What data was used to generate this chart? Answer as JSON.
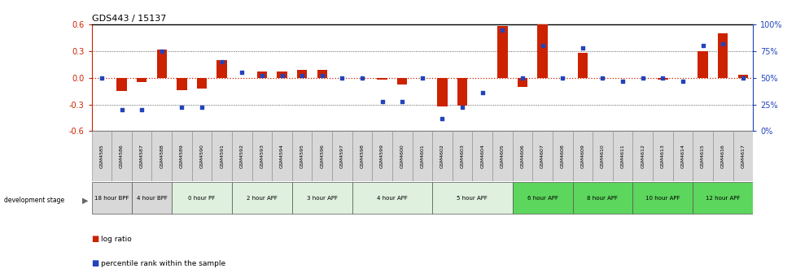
{
  "title": "GDS443 / 15137",
  "samples": [
    "GSM4585",
    "GSM4586",
    "GSM4587",
    "GSM4588",
    "GSM4589",
    "GSM4590",
    "GSM4591",
    "GSM4592",
    "GSM4593",
    "GSM4594",
    "GSM4595",
    "GSM4596",
    "GSM4597",
    "GSM4598",
    "GSM4599",
    "GSM4600",
    "GSM4601",
    "GSM4602",
    "GSM4603",
    "GSM4604",
    "GSM4605",
    "GSM4606",
    "GSM4607",
    "GSM4608",
    "GSM4609",
    "GSM4610",
    "GSM4611",
    "GSM4612",
    "GSM4613",
    "GSM4614",
    "GSM4615",
    "GSM4616",
    "GSM4617"
  ],
  "log_ratio": [
    0.0,
    -0.15,
    -0.05,
    0.32,
    -0.14,
    -0.12,
    0.2,
    0.0,
    0.07,
    0.07,
    0.09,
    0.09,
    0.0,
    0.0,
    -0.02,
    -0.08,
    0.0,
    -0.32,
    -0.31,
    0.0,
    0.58,
    -0.1,
    0.68,
    0.0,
    0.28,
    0.0,
    0.0,
    0.0,
    -0.02,
    0.0,
    0.3,
    0.5,
    0.03
  ],
  "percentile_rank": [
    50,
    20,
    20,
    75,
    22,
    22,
    65,
    55,
    52,
    52,
    52,
    52,
    50,
    50,
    28,
    28,
    50,
    12,
    22,
    36,
    95,
    50,
    80,
    50,
    78,
    50,
    47,
    50,
    50,
    47,
    80,
    82,
    50
  ],
  "stages": [
    {
      "label": "18 hour BPF",
      "start": 0,
      "end": 1,
      "color": "#d8d8d8"
    },
    {
      "label": "4 hour BPF",
      "start": 2,
      "end": 3,
      "color": "#d8d8d8"
    },
    {
      "label": "0 hour PF",
      "start": 4,
      "end": 6,
      "color": "#dff0df"
    },
    {
      "label": "2 hour APF",
      "start": 7,
      "end": 9,
      "color": "#dff0df"
    },
    {
      "label": "3 hour APF",
      "start": 10,
      "end": 12,
      "color": "#dff0df"
    },
    {
      "label": "4 hour APF",
      "start": 13,
      "end": 16,
      "color": "#dff0df"
    },
    {
      "label": "5 hour APF",
      "start": 17,
      "end": 20,
      "color": "#dff0df"
    },
    {
      "label": "6 hour APF",
      "start": 21,
      "end": 23,
      "color": "#5cd65c"
    },
    {
      "label": "8 hour APF",
      "start": 24,
      "end": 26,
      "color": "#5cd65c"
    },
    {
      "label": "10 hour APF",
      "start": 27,
      "end": 29,
      "color": "#5cd65c"
    },
    {
      "label": "12 hour APF",
      "start": 30,
      "end": 32,
      "color": "#5cd65c"
    }
  ],
  "ylim": [
    -0.6,
    0.6
  ],
  "yticks_left": [
    -0.6,
    -0.3,
    0.0,
    0.3,
    0.6
  ],
  "yticks_right_pct": [
    0,
    25,
    50,
    75,
    100
  ],
  "bar_color": "#cc2200",
  "dot_color": "#2244bb",
  "zero_line_color": "#cc2200",
  "grid_color": "#333333",
  "sample_box_color": "#d8d8d8",
  "background_color": "#ffffff",
  "bar_width": 0.5
}
